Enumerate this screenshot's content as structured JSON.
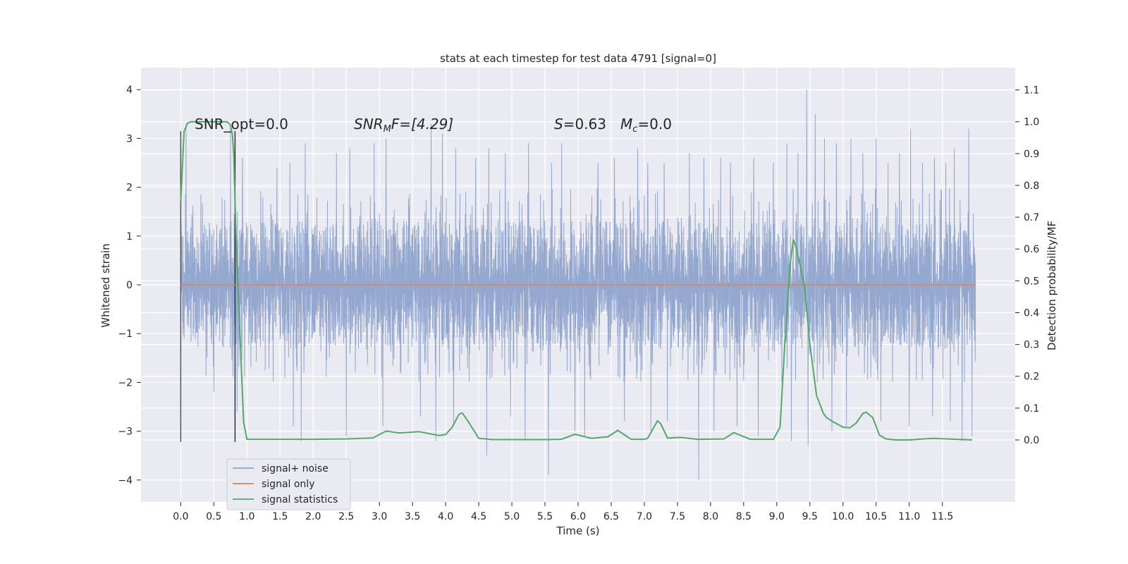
{
  "chart_data": {
    "type": "line",
    "title": "stats at each timestep for test data 4791 [signal=0]",
    "xlabel": "Time (s)",
    "ylabel": "Whitened strain",
    "ylabel_right": "Detection probability/MF",
    "xlim": [
      -0.6,
      12.6
    ],
    "ylim": [
      -4.45,
      4.45
    ],
    "ylim_right": [
      -0.195,
      1.17
    ],
    "x_ticks": [
      0.0,
      0.5,
      1.0,
      1.5,
      2.0,
      2.5,
      3.0,
      3.5,
      4.0,
      4.5,
      5.0,
      5.5,
      6.0,
      6.5,
      7.0,
      7.5,
      8.0,
      8.5,
      9.0,
      9.5,
      10.0,
      10.5,
      11.0,
      11.5
    ],
    "x_tick_labels": [
      "0.0",
      "0.5",
      "1.0",
      "1.5",
      "2.0",
      "2.5",
      "3.0",
      "3.5",
      "4.0",
      "4.5",
      "5.0",
      "5.5",
      "6.0",
      "6.5",
      "7.0",
      "7.5",
      "8.0",
      "8.5",
      "9.0",
      "9.5",
      "10.0",
      "10.5",
      "11.0",
      "11.5"
    ],
    "y_ticks": [
      4,
      3,
      2,
      1,
      0,
      -1,
      -2,
      -3,
      -4
    ],
    "y_tick_labels": [
      "4",
      "3",
      "2",
      "1",
      "0",
      "−1",
      "−2",
      "−3",
      "−4"
    ],
    "y_right_ticks": [
      1.1,
      1.0,
      0.9,
      0.8,
      0.7,
      0.6,
      0.5,
      0.4,
      0.3,
      0.2,
      0.1,
      0.0
    ],
    "y_right_tick_labels": [
      "1.1",
      "1.0",
      "0.9",
      "0.8",
      "0.7",
      "0.6",
      "0.5",
      "0.4",
      "0.3",
      "0.2",
      "0.1",
      "0.0"
    ],
    "grid": true,
    "legend_position": "lower-left",
    "annotations": {
      "snr_opt": "SNR_opt=0.0",
      "snr_mf_a": "SNR",
      "snr_mf_sub": "M",
      "snr_mf_b": "F=[4.29]",
      "s_stat_a": "S",
      "s_stat_b": "=0.63",
      "mc_a": "M",
      "mc_sub": "c",
      "mc_b": "=0.0"
    },
    "series": [
      {
        "name": "signal+ noise",
        "color": "#8fa3cc",
        "axis": "left",
        "duration_s": 12.0,
        "envelope": {
          "typical_min": -2.0,
          "typical_max": 2.0,
          "core_min": -1.3,
          "core_max": 1.3
        },
        "spikes": [
          [
            0.08,
            3.3
          ],
          [
            0.75,
            3.2
          ],
          [
            0.93,
            2.6
          ],
          [
            1.45,
            2.4
          ],
          [
            1.65,
            2.5
          ],
          [
            1.88,
            2.9
          ],
          [
            2.35,
            2.7
          ],
          [
            2.55,
            2.8
          ],
          [
            2.92,
            2.9
          ],
          [
            3.1,
            3.0
          ],
          [
            3.78,
            3.3
          ],
          [
            3.95,
            3.1
          ],
          [
            4.15,
            2.8
          ],
          [
            4.45,
            2.6
          ],
          [
            4.65,
            2.8
          ],
          [
            4.9,
            2.7
          ],
          [
            5.25,
            2.9
          ],
          [
            5.6,
            2.5
          ],
          [
            5.75,
            2.9
          ],
          [
            6.3,
            2.5
          ],
          [
            6.55,
            2.6
          ],
          [
            6.9,
            2.8
          ],
          [
            7.05,
            2.5
          ],
          [
            7.3,
            2.5
          ],
          [
            7.68,
            2.7
          ],
          [
            7.9,
            2.6
          ],
          [
            8.15,
            2.6
          ],
          [
            8.3,
            2.5
          ],
          [
            8.65,
            2.6
          ],
          [
            8.95,
            2.5
          ],
          [
            9.15,
            2.9
          ],
          [
            9.32,
            2.7
          ],
          [
            9.45,
            4.0
          ],
          [
            9.58,
            3.5
          ],
          [
            9.72,
            3.0
          ],
          [
            9.9,
            2.9
          ],
          [
            10.12,
            3.0
          ],
          [
            10.3,
            2.7
          ],
          [
            10.5,
            3.0
          ],
          [
            10.68,
            2.5
          ],
          [
            10.85,
            2.7
          ],
          [
            11.02,
            3.2
          ],
          [
            11.2,
            2.5
          ],
          [
            11.38,
            2.6
          ],
          [
            11.55,
            2.5
          ],
          [
            11.68,
            2.8
          ],
          [
            11.9,
            3.2
          ],
          [
            0.5,
            -2.2
          ],
          [
            0.85,
            -2.6
          ],
          [
            1.7,
            -2.9
          ],
          [
            1.82,
            -3.2
          ],
          [
            2.5,
            -3.1
          ],
          [
            3.05,
            -2.9
          ],
          [
            3.62,
            -2.7
          ],
          [
            3.85,
            -3.2
          ],
          [
            4.12,
            -2.9
          ],
          [
            4.62,
            -3.5
          ],
          [
            4.98,
            -2.7
          ],
          [
            5.2,
            -3.2
          ],
          [
            5.55,
            -3.9
          ],
          [
            5.95,
            -3.0
          ],
          [
            6.1,
            -3.1
          ],
          [
            6.7,
            -2.8
          ],
          [
            7.1,
            -3.0
          ],
          [
            7.35,
            -2.8
          ],
          [
            7.82,
            -4.0
          ],
          [
            8.05,
            -3.0
          ],
          [
            8.4,
            -2.9
          ],
          [
            8.72,
            -3.1
          ],
          [
            9.22,
            -3.2
          ],
          [
            9.47,
            -3.3
          ],
          [
            9.83,
            -3.0
          ],
          [
            10.05,
            -2.9
          ],
          [
            10.57,
            -2.8
          ],
          [
            11.0,
            -2.9
          ],
          [
            11.35,
            -2.7
          ],
          [
            11.62,
            -2.8
          ],
          [
            11.8,
            -3.2
          ],
          [
            11.95,
            -3.1
          ]
        ]
      },
      {
        "name": "signal only",
        "color": "#dd8452",
        "axis": "left",
        "x": [
          0.0,
          12.0
        ],
        "y": [
          0.0,
          0.0
        ]
      },
      {
        "name": "signal statistics",
        "color": "#55a868",
        "axis": "right",
        "x": [
          0.0,
          0.05,
          0.1,
          0.15,
          0.2,
          0.25,
          0.3,
          0.5,
          0.6,
          0.7,
          0.75,
          0.78,
          0.8,
          0.84,
          0.9,
          0.95,
          1.0,
          1.5,
          2.0,
          2.5,
          2.9,
          3.1,
          3.3,
          3.6,
          3.9,
          4.0,
          4.1,
          4.2,
          4.25,
          4.35,
          4.5,
          4.7,
          5.0,
          5.5,
          5.75,
          5.95,
          6.2,
          6.45,
          6.6,
          6.8,
          7.0,
          7.05,
          7.2,
          7.25,
          7.35,
          7.55,
          7.8,
          8.2,
          8.35,
          8.6,
          8.95,
          9.05,
          9.12,
          9.2,
          9.25,
          9.3,
          9.35,
          9.42,
          9.5,
          9.6,
          9.7,
          9.75,
          9.85,
          10.0,
          10.1,
          10.2,
          10.3,
          10.35,
          10.45,
          10.55,
          10.65,
          10.8,
          11.0,
          11.35,
          11.95
        ],
        "y": [
          0.75,
          0.97,
          0.995,
          1.0,
          1.0,
          1.0,
          1.0,
          1.0,
          1.0,
          1.0,
          0.99,
          0.96,
          0.9,
          0.6,
          0.3,
          0.055,
          0.002,
          0.002,
          0.002,
          0.003,
          0.006,
          0.028,
          0.022,
          0.026,
          0.014,
          0.017,
          0.04,
          0.08,
          0.085,
          0.055,
          0.005,
          0.001,
          0.001,
          0.001,
          0.002,
          0.018,
          0.005,
          0.01,
          0.03,
          0.002,
          0.002,
          0.005,
          0.06,
          0.05,
          0.006,
          0.008,
          0.002,
          0.003,
          0.023,
          0.002,
          0.002,
          0.04,
          0.3,
          0.55,
          0.63,
          0.6,
          0.55,
          0.48,
          0.3,
          0.14,
          0.085,
          0.07,
          0.057,
          0.04,
          0.038,
          0.053,
          0.083,
          0.087,
          0.07,
          0.015,
          0.003,
          0.0,
          0.0,
          0.005,
          0.0
        ]
      }
    ],
    "vertical_markers": [
      {
        "x": 0.0,
        "y_range": [
          -3.22,
          3.15
        ],
        "color": "#555555"
      },
      {
        "x": 0.82,
        "y_range": [
          -3.22,
          3.15
        ],
        "color": "#333333"
      }
    ]
  }
}
